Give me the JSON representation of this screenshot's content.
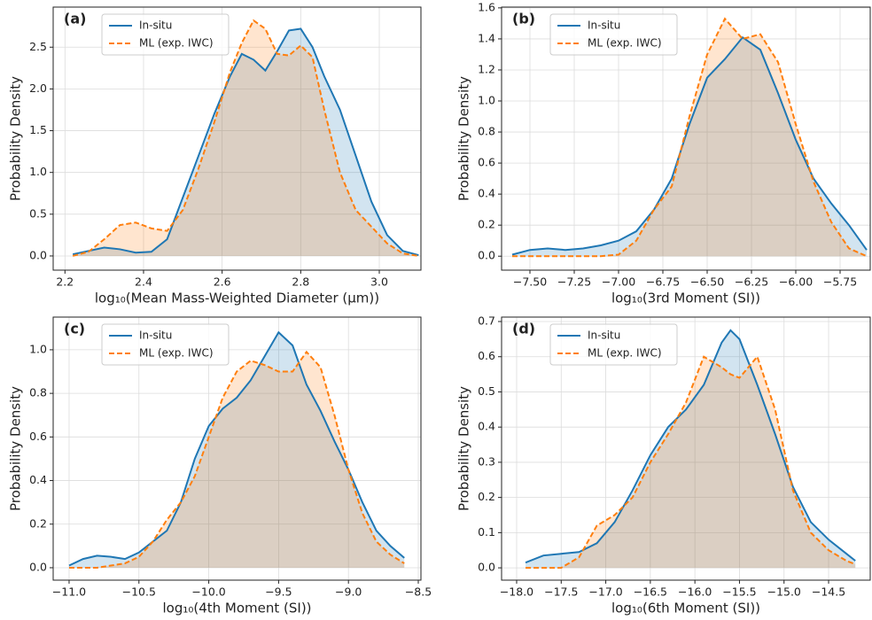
{
  "chart_data": [
    {
      "type": "line",
      "label": "(a)",
      "xlabel": "log₁₀(Mean Mass-Weighted Diameter (μm))",
      "ylabel": "Probability Density",
      "x": [
        2.22,
        2.26,
        2.3,
        2.34,
        2.38,
        2.42,
        2.46,
        2.5,
        2.54,
        2.58,
        2.62,
        2.65,
        2.68,
        2.71,
        2.74,
        2.77,
        2.8,
        2.83,
        2.86,
        2.9,
        2.94,
        2.98,
        3.02,
        3.06,
        3.1
      ],
      "series": [
        {
          "name": "In-situ",
          "color": "#1f77b4",
          "linestyle": "solid",
          "values": [
            0.02,
            0.06,
            0.1,
            0.08,
            0.04,
            0.05,
            0.2,
            0.7,
            1.2,
            1.7,
            2.15,
            2.42,
            2.35,
            2.22,
            2.45,
            2.7,
            2.72,
            2.5,
            2.15,
            1.75,
            1.2,
            0.65,
            0.25,
            0.06,
            0.01
          ]
        },
        {
          "name": "ML (exp. IWC)",
          "color": "#ff7f0e",
          "linestyle": "dashed",
          "values": [
            0.0,
            0.05,
            0.2,
            0.37,
            0.4,
            0.33,
            0.3,
            0.55,
            1.05,
            1.6,
            2.2,
            2.55,
            2.82,
            2.72,
            2.42,
            2.4,
            2.52,
            2.38,
            1.75,
            1.0,
            0.55,
            0.35,
            0.15,
            0.03,
            0.0
          ]
        }
      ],
      "xlim": [
        2.17,
        3.106
      ],
      "ylim": [
        -0.17,
        2.98
      ],
      "xticks": [
        2.2,
        2.4,
        2.6,
        2.8,
        {
          "value": 3.0,
          "label": "3.0"
        }
      ],
      "yticks": [
        {
          "value": 0,
          "label": "0.0"
        },
        0.5,
        {
          "value": 1,
          "label": "1.0"
        },
        1.5,
        {
          "value": 2,
          "label": "2.0"
        },
        2.5
      ],
      "grid": true,
      "fill": true,
      "legend": "upper left"
    },
    {
      "type": "line",
      "label": "(b)",
      "xlabel": "log₁₀(3rd Moment (SI))",
      "ylabel": "Probability Density",
      "x": [
        -7.6,
        -7.5,
        -7.4,
        -7.3,
        -7.2,
        -7.1,
        -7.0,
        -6.9,
        -6.8,
        -6.7,
        -6.6,
        -6.5,
        -6.4,
        -6.3,
        -6.2,
        -6.1,
        -6.0,
        -5.9,
        -5.8,
        -5.7,
        -5.6
      ],
      "series": [
        {
          "name": "In-situ",
          "color": "#1f77b4",
          "linestyle": "solid",
          "values": [
            0.01,
            0.04,
            0.05,
            0.04,
            0.05,
            0.07,
            0.1,
            0.16,
            0.3,
            0.5,
            0.85,
            1.15,
            1.27,
            1.41,
            1.33,
            1.05,
            0.75,
            0.5,
            0.34,
            0.2,
            0.04
          ]
        },
        {
          "name": "ML (exp. IWC)",
          "color": "#ff7f0e",
          "linestyle": "dashed",
          "values": [
            0,
            0,
            0,
            0,
            0,
            0,
            0.01,
            0.1,
            0.3,
            0.45,
            0.9,
            1.3,
            1.53,
            1.4,
            1.43,
            1.25,
            0.85,
            0.48,
            0.22,
            0.05,
            0.0
          ]
        }
      ],
      "xlim": [
        -7.66,
        -5.58
      ],
      "ylim": [
        -0.09,
        1.605
      ],
      "xticks": [
        {
          "value": -7.5,
          "label": "−7.50"
        },
        {
          "value": -7.25,
          "label": "−7.25"
        },
        {
          "value": -7.0,
          "label": "−7.00"
        },
        {
          "value": -6.75,
          "label": "−6.75"
        },
        {
          "value": -6.5,
          "label": "−6.50"
        },
        {
          "value": -6.25,
          "label": "−6.25"
        },
        {
          "value": -6.0,
          "label": "−6.00"
        },
        {
          "value": -5.75,
          "label": "−5.75"
        }
      ],
      "yticks": [
        {
          "value": 0,
          "label": "0.0"
        },
        0.2,
        0.4,
        0.6,
        0.8,
        {
          "value": 1,
          "label": "1.0"
        },
        1.2,
        1.4,
        1.6
      ],
      "grid": true,
      "fill": true,
      "legend": "upper left"
    },
    {
      "type": "line",
      "label": "(c)",
      "xlabel": "log₁₀(4th Moment (SI))",
      "ylabel": "Probability Density",
      "x": [
        -11.0,
        -10.9,
        -10.8,
        -10.7,
        -10.6,
        -10.5,
        -10.4,
        -10.3,
        -10.2,
        -10.1,
        -10.0,
        -9.9,
        -9.8,
        -9.7,
        -9.6,
        -9.5,
        -9.4,
        -9.3,
        -9.2,
        -9.1,
        -9.0,
        -8.9,
        -8.8,
        -8.7,
        -8.6
      ],
      "series": [
        {
          "name": "In-situ",
          "color": "#1f77b4",
          "linestyle": "solid",
          "values": [
            0.01,
            0.04,
            0.055,
            0.05,
            0.04,
            0.07,
            0.12,
            0.17,
            0.3,
            0.5,
            0.65,
            0.73,
            0.78,
            0.86,
            0.97,
            1.08,
            1.02,
            0.84,
            0.72,
            0.58,
            0.45,
            0.3,
            0.17,
            0.1,
            0.045
          ]
        },
        {
          "name": "ML (exp. IWC)",
          "color": "#ff7f0e",
          "linestyle": "dashed",
          "values": [
            0,
            0,
            0,
            0.01,
            0.02,
            0.05,
            0.12,
            0.22,
            0.3,
            0.42,
            0.6,
            0.78,
            0.9,
            0.95,
            0.93,
            0.9,
            0.9,
            0.99,
            0.92,
            0.7,
            0.45,
            0.25,
            0.12,
            0.06,
            0.02
          ]
        }
      ],
      "xlim": [
        -11.114,
        -8.481
      ],
      "ylim": [
        -0.057,
        1.15
      ],
      "xticks": [
        {
          "value": -11.0,
          "label": "−11.0"
        },
        {
          "value": -10.5,
          "label": "−10.5"
        },
        {
          "value": -10.0,
          "label": "−10.0"
        },
        {
          "value": -9.5,
          "label": "−9.5"
        },
        {
          "value": -9.0,
          "label": "−9.0"
        },
        {
          "value": -8.5,
          "label": "−8.5"
        }
      ],
      "yticks": [
        {
          "value": 0,
          "label": "0.0"
        },
        0.2,
        0.4,
        0.6,
        0.8,
        {
          "value": 1,
          "label": "1.0"
        }
      ],
      "grid": true,
      "fill": true,
      "legend": "upper left"
    },
    {
      "type": "line",
      "label": "(d)",
      "xlabel": "log₁₀(6th Moment (SI))",
      "ylabel": "Probability Density",
      "x": [
        -17.9,
        -17.7,
        -17.5,
        -17.3,
        -17.1,
        -16.9,
        -16.7,
        -16.5,
        -16.3,
        -16.1,
        -15.9,
        -15.7,
        -15.6,
        -15.5,
        -15.3,
        -15.1,
        -14.9,
        -14.7,
        -14.5,
        -14.3,
        -14.2
      ],
      "series": [
        {
          "name": "In-situ",
          "color": "#1f77b4",
          "linestyle": "solid",
          "values": [
            0.015,
            0.035,
            0.04,
            0.045,
            0.07,
            0.13,
            0.22,
            0.32,
            0.4,
            0.45,
            0.52,
            0.64,
            0.675,
            0.65,
            0.52,
            0.38,
            0.23,
            0.13,
            0.08,
            0.04,
            0.02
          ]
        },
        {
          "name": "ML (exp. IWC)",
          "color": "#ff7f0e",
          "linestyle": "dashed",
          "values": [
            0,
            0,
            0,
            0.03,
            0.12,
            0.15,
            0.2,
            0.3,
            0.38,
            0.47,
            0.6,
            0.57,
            0.55,
            0.54,
            0.6,
            0.45,
            0.22,
            0.1,
            0.05,
            0.02,
            0.01
          ]
        }
      ],
      "xlim": [
        -18.169,
        -14.033
      ],
      "ylim": [
        -0.035,
        0.7126
      ],
      "xticks": [
        {
          "value": -18.0,
          "label": "−18.0"
        },
        {
          "value": -17.5,
          "label": "−17.5"
        },
        {
          "value": -17.0,
          "label": "−17.0"
        },
        {
          "value": -16.5,
          "label": "−16.5"
        },
        {
          "value": -16.0,
          "label": "−16.0"
        },
        {
          "value": -15.5,
          "label": "−15.5"
        },
        {
          "value": -15.0,
          "label": "−15.0"
        },
        {
          "value": -14.5,
          "label": "−14.5"
        }
      ],
      "yticks": [
        {
          "value": 0,
          "label": "0.0"
        },
        0.1,
        0.2,
        0.3,
        0.4,
        0.5,
        0.6,
        0.7
      ],
      "grid": true,
      "fill": true,
      "legend": "upper left"
    }
  ]
}
